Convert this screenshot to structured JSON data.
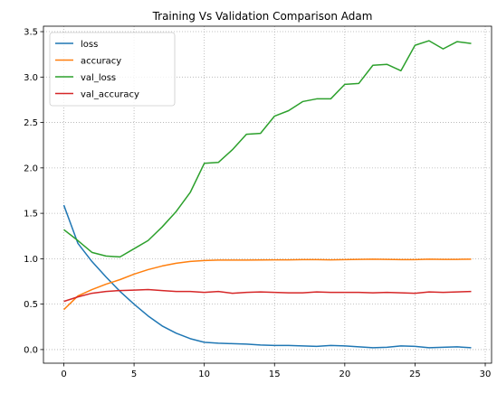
{
  "chart_data": {
    "type": "line",
    "title": "Training Vs Validation Comparison Adam",
    "xlabel": "",
    "ylabel": "",
    "xlim": [
      -1.45,
      30.45
    ],
    "ylim": [
      -0.15,
      3.56
    ],
    "xticks": [
      0,
      5,
      10,
      15,
      20,
      25,
      30
    ],
    "yticks": [
      0.0,
      0.5,
      1.0,
      1.5,
      2.0,
      2.5,
      3.0,
      3.5
    ],
    "xtick_labels": [
      "0",
      "5",
      "10",
      "15",
      "20",
      "25",
      "30"
    ],
    "ytick_labels": [
      "0.0",
      "0.5",
      "1.0",
      "1.5",
      "2.0",
      "2.5",
      "3.0",
      "3.5"
    ],
    "grid": true,
    "grid_style": "dotted",
    "legend_position": "top-left",
    "x": [
      0,
      1,
      2,
      3,
      4,
      5,
      6,
      7,
      8,
      9,
      10,
      11,
      12,
      13,
      14,
      15,
      16,
      17,
      18,
      19,
      20,
      21,
      22,
      23,
      24,
      25,
      26,
      27,
      28,
      29
    ],
    "series": [
      {
        "name": "loss",
        "color": "#1f77b4",
        "values": [
          1.59,
          1.17,
          0.97,
          0.8,
          0.64,
          0.5,
          0.37,
          0.26,
          0.18,
          0.12,
          0.08,
          0.07,
          0.065,
          0.06,
          0.05,
          0.045,
          0.045,
          0.04,
          0.035,
          0.045,
          0.04,
          0.03,
          0.02,
          0.025,
          0.04,
          0.035,
          0.02,
          0.025,
          0.03,
          0.02
        ]
      },
      {
        "name": "accuracy",
        "color": "#ff7f0e",
        "values": [
          0.44,
          0.59,
          0.66,
          0.72,
          0.77,
          0.83,
          0.88,
          0.92,
          0.95,
          0.97,
          0.98,
          0.985,
          0.985,
          0.985,
          0.987,
          0.988,
          0.988,
          0.99,
          0.99,
          0.988,
          0.99,
          0.992,
          0.995,
          0.993,
          0.99,
          0.99,
          0.995,
          0.993,
          0.993,
          0.995
        ]
      },
      {
        "name": "val_loss",
        "color": "#2ca02c",
        "values": [
          1.32,
          1.2,
          1.07,
          1.03,
          1.02,
          1.11,
          1.2,
          1.35,
          1.52,
          1.73,
          2.05,
          2.06,
          2.2,
          2.37,
          2.38,
          2.57,
          2.63,
          2.73,
          2.76,
          2.76,
          2.92,
          2.93,
          3.13,
          3.14,
          3.07,
          3.35,
          3.4,
          3.31,
          3.39,
          3.37
        ]
      },
      {
        "name": "val_accuracy",
        "color": "#d62728",
        "values": [
          0.53,
          0.58,
          0.62,
          0.64,
          0.65,
          0.655,
          0.66,
          0.65,
          0.64,
          0.64,
          0.63,
          0.64,
          0.62,
          0.63,
          0.635,
          0.63,
          0.625,
          0.625,
          0.635,
          0.63,
          0.63,
          0.63,
          0.625,
          0.63,
          0.625,
          0.62,
          0.635,
          0.63,
          0.635,
          0.64
        ]
      }
    ]
  }
}
